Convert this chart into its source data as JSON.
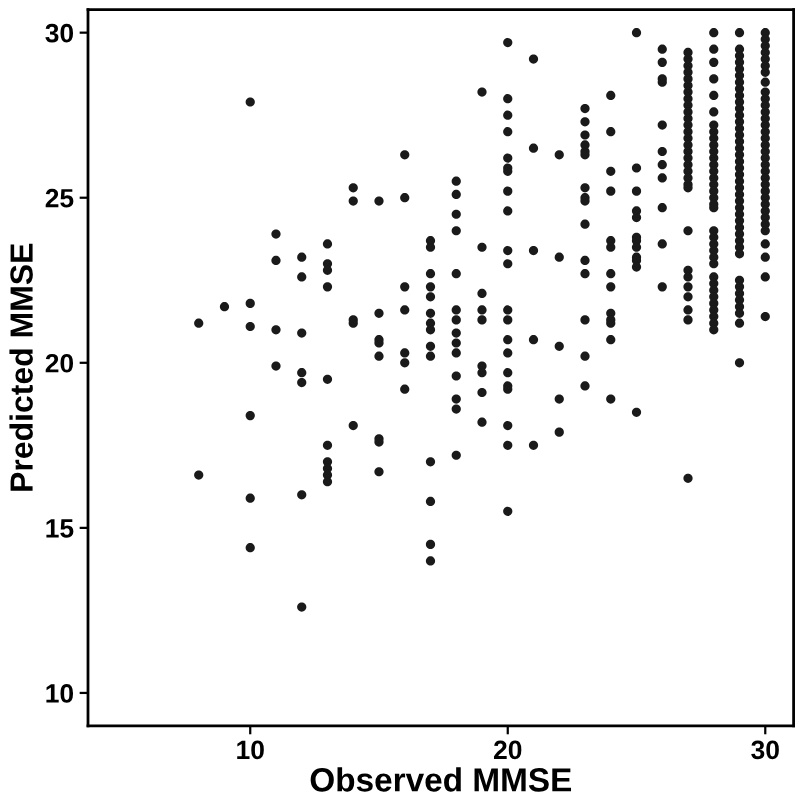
{
  "chart_data": {
    "type": "scatter",
    "xlabel": "Observed MMSE",
    "ylabel": "Predicted MMSE",
    "xlim": [
      3.7,
      31.1
    ],
    "ylim": [
      9.0,
      30.7
    ],
    "xticks": [
      10,
      20,
      30
    ],
    "yticks": [
      10,
      15,
      20,
      25,
      30
    ],
    "grid": false,
    "marker": "circle",
    "series": [
      {
        "color": "#1a1a1a",
        "x": [
          8,
          8,
          9,
          10,
          10,
          10,
          10,
          10,
          10,
          11,
          11,
          11,
          11,
          12,
          12,
          12,
          12,
          12,
          12,
          12,
          13,
          13,
          13,
          13,
          13,
          13,
          13,
          13,
          13,
          13,
          14,
          14,
          14,
          14,
          14,
          15,
          15,
          15,
          15,
          15,
          15,
          15,
          15,
          16,
          16,
          16,
          16,
          16,
          16,
          16,
          17,
          17,
          17,
          17,
          17,
          17,
          17,
          17,
          17,
          17,
          17,
          17,
          17,
          17,
          18,
          18,
          18,
          18,
          18,
          18,
          18,
          18,
          18,
          18,
          18,
          18,
          18,
          18,
          19,
          19,
          19,
          19,
          19,
          19,
          19,
          19,
          19,
          20,
          20,
          20,
          20,
          20,
          20,
          20,
          20,
          20,
          20,
          20,
          20,
          20,
          20,
          20,
          20,
          20,
          20,
          20,
          20,
          20,
          21,
          21,
          21,
          21,
          21,
          22,
          22,
          22,
          22,
          22,
          23,
          23,
          23,
          23,
          23,
          23,
          23,
          23,
          23,
          23,
          23,
          23,
          23,
          23,
          23,
          24,
          24,
          24,
          24,
          24,
          24,
          24,
          24,
          24,
          24,
          24,
          24,
          24,
          25,
          25,
          25,
          25,
          25,
          25,
          25,
          25,
          25,
          25,
          25,
          25,
          26,
          26,
          26,
          26,
          26,
          26,
          26,
          26,
          26,
          26,
          26,
          27,
          27,
          27,
          27,
          27,
          27,
          27,
          27,
          27,
          27,
          27,
          27,
          27,
          27,
          27,
          27,
          27,
          27,
          27,
          27,
          27,
          27,
          27,
          27,
          27,
          27,
          27,
          27,
          27,
          27,
          28,
          28,
          28,
          28,
          28,
          28,
          28,
          28,
          28,
          28,
          28,
          28,
          28,
          28,
          28,
          28,
          28,
          28,
          28,
          28,
          28,
          28,
          28,
          28,
          28,
          28,
          28,
          28,
          28,
          28,
          28,
          28,
          28,
          28,
          28,
          29,
          29,
          29,
          29,
          29,
          29,
          29,
          29,
          29,
          29,
          29,
          29,
          29,
          29,
          29,
          29,
          29,
          29,
          29,
          29,
          29,
          29,
          29,
          29,
          29,
          29,
          29,
          29,
          29,
          29,
          29,
          29,
          29,
          29,
          29,
          29,
          29,
          29,
          29,
          29,
          29,
          30,
          30,
          30,
          30,
          30,
          30,
          30,
          30,
          30,
          30,
          30,
          30,
          30,
          30,
          30,
          30,
          30,
          30,
          30,
          30,
          30,
          30,
          30,
          30,
          30,
          30,
          30,
          30,
          30,
          30,
          30,
          30,
          30,
          30
        ],
        "values": [
          21.2,
          16.6,
          21.7,
          27.9,
          21.8,
          21.1,
          18.4,
          15.9,
          14.4,
          23.9,
          23.1,
          21.0,
          19.9,
          23.2,
          22.6,
          20.9,
          19.7,
          19.4,
          16.0,
          12.6,
          23.6,
          23.0,
          22.8,
          22.3,
          19.5,
          17.5,
          17.0,
          16.8,
          16.6,
          16.4,
          25.3,
          24.9,
          21.3,
          21.2,
          18.1,
          24.9,
          21.5,
          20.7,
          20.6,
          20.2,
          17.7,
          17.6,
          16.7,
          26.3,
          25.0,
          22.3,
          21.6,
          20.3,
          20.0,
          19.2,
          23.7,
          23.5,
          22.7,
          22.3,
          22.0,
          21.5,
          21.2,
          21.0,
          20.5,
          20.2,
          17.0,
          15.8,
          14.5,
          14.0,
          25.5,
          25.1,
          24.5,
          24.0,
          22.7,
          21.6,
          21.3,
          20.9,
          20.6,
          20.3,
          19.6,
          18.9,
          18.6,
          17.2,
          28.2,
          23.5,
          22.1,
          21.6,
          21.3,
          19.9,
          19.7,
          19.1,
          18.2,
          29.7,
          28.0,
          27.5,
          27.0,
          26.2,
          25.9,
          25.8,
          25.2,
          24.6,
          23.4,
          23.0,
          21.6,
          21.3,
          20.7,
          20.3,
          19.7,
          19.3,
          19.2,
          18.1,
          17.5,
          15.5,
          29.2,
          26.5,
          23.4,
          20.7,
          17.5,
          26.3,
          23.2,
          20.5,
          18.9,
          17.9,
          27.7,
          27.3,
          26.9,
          26.6,
          26.4,
          26.3,
          25.3,
          25.0,
          24.9,
          24.2,
          23.1,
          22.7,
          21.3,
          20.2,
          19.3,
          28.1,
          27.0,
          25.8,
          25.2,
          23.7,
          23.5,
          22.7,
          22.3,
          21.5,
          21.3,
          21.2,
          20.7,
          18.9,
          30.0,
          25.9,
          25.2,
          24.6,
          24.4,
          23.8,
          23.7,
          23.5,
          23.2,
          23.1,
          22.9,
          18.5,
          29.5,
          29.1,
          28.6,
          28.5,
          27.2,
          26.4,
          26.0,
          25.6,
          24.7,
          23.6,
          22.3,
          29.4,
          29.2,
          29.0,
          28.8,
          28.6,
          28.4,
          28.2,
          28.0,
          27.8,
          27.6,
          27.4,
          27.2,
          27.0,
          26.8,
          26.6,
          26.4,
          26.2,
          26.0,
          25.8,
          25.6,
          25.4,
          25.3,
          24.0,
          22.8,
          22.6,
          22.3,
          22.0,
          21.6,
          21.3,
          16.5,
          30.0,
          29.5,
          29.1,
          28.6,
          28.1,
          27.6,
          27.2,
          27.0,
          26.8,
          26.6,
          26.4,
          26.2,
          26.0,
          25.8,
          25.6,
          25.4,
          25.2,
          25.0,
          24.8,
          24.7,
          24.0,
          23.8,
          23.6,
          23.4,
          23.2,
          23.0,
          22.6,
          22.4,
          22.2,
          22.0,
          21.8,
          21.6,
          21.4,
          21.2,
          21.0,
          30.0,
          29.5,
          29.3,
          29.1,
          28.9,
          28.7,
          28.5,
          28.3,
          28.1,
          27.9,
          27.7,
          27.5,
          27.3,
          27.1,
          26.9,
          26.7,
          26.5,
          26.3,
          26.1,
          25.9,
          25.7,
          25.5,
          25.3,
          25.1,
          24.9,
          24.7,
          24.5,
          24.3,
          24.1,
          23.9,
          23.7,
          23.5,
          23.3,
          22.5,
          22.3,
          22.1,
          21.9,
          21.7,
          21.5,
          21.2,
          20.0,
          30.0,
          29.8,
          29.6,
          29.4,
          29.2,
          29.0,
          28.8,
          28.5,
          28.2,
          28.0,
          27.8,
          27.6,
          27.4,
          27.2,
          27.0,
          26.8,
          26.6,
          26.4,
          26.2,
          26.0,
          25.8,
          25.6,
          25.4,
          25.2,
          25.0,
          24.8,
          24.6,
          24.4,
          24.2,
          24.0,
          23.6,
          23.2,
          22.6,
          21.4
        ]
      }
    ]
  }
}
